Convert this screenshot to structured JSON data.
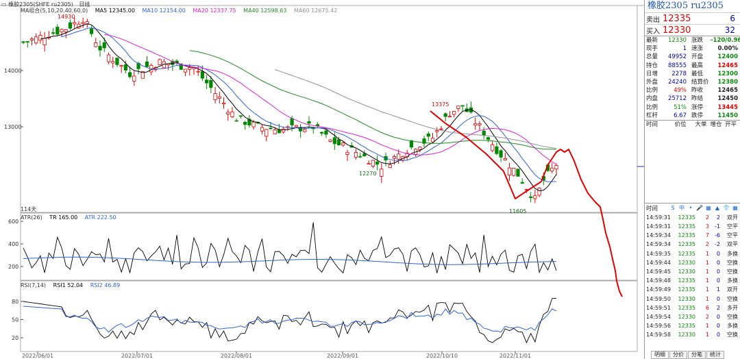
{
  "window": {
    "title": "橡胶2305(SHFE ru2305)",
    "period": "日线"
  },
  "main_legend": {
    "label": "MA组合(5,10,20,40,60,0)",
    "ma5": "MA5 12345.00",
    "ma10": "MA10 12154.00",
    "ma20": "MA20 12337.75",
    "ma40": "MA40 12598.63",
    "ma60": "MA60 12675.42"
  },
  "colors": {
    "ma5": "#000000",
    "ma10": "#2c62d6",
    "ma20": "#e020d0",
    "ma40": "#1f8a1f",
    "ma60": "#909090",
    "up": "#e00000",
    "down": "#008800",
    "drawn_line": "#e00000"
  },
  "price_axis": {
    "ticks": [
      "14000",
      "13000"
    ]
  },
  "annotations": {
    "high1": "14930",
    "high2": "13375",
    "low1": "12270",
    "low2": "11605",
    "days": "114天"
  },
  "atr_legend": {
    "label": "ATR(26)",
    "tr": "TR 165.00",
    "atr": "ATR 222.50",
    "ticks": [
      "600",
      "400",
      "200"
    ]
  },
  "rsi_legend": {
    "label": "RSI(7,14)",
    "rsi1": "RSI1 52.04",
    "rsi2": "RSI2 46.89",
    "ticks": [
      "80",
      "50",
      "20"
    ]
  },
  "dates": [
    "2022/06/01",
    "2022/07/01",
    "2022/08/01",
    "2022/09/01",
    "2022/10/10",
    "2022/11/01"
  ],
  "quote": {
    "title": "橡胶2305  ru2305",
    "sell_label": "卖出",
    "sell_price": "12335",
    "sell_qty": "6",
    "buy_label": "买入",
    "buy_price": "12330",
    "buy_qty": "32",
    "stats": [
      {
        "k": "最新",
        "v": "12330",
        "vc": "#0a8a0a",
        "k2": "涨跌",
        "v2": "-120/0.96%",
        "v2c": "#0a8a0a"
      },
      {
        "k": "现手",
        "v": "1",
        "vc": "#0000aa",
        "k2": "速涨",
        "v2": "0.00%",
        "v2c": "#222"
      },
      {
        "k": "总量",
        "v": "49952",
        "vc": "#0000aa",
        "k2": "开盘",
        "v2": "12400",
        "v2c": "#0a8a0a"
      },
      {
        "k": "持仓",
        "v": "88555",
        "vc": "#0000aa",
        "k2": "最高",
        "v2": "12465",
        "v2c": "#e00000"
      },
      {
        "k": "日增",
        "v": "2278",
        "vc": "#0000aa",
        "k2": "最低",
        "v2": "12300",
        "v2c": "#0a8a0a"
      },
      {
        "k": "外盘",
        "v": "24240",
        "vc": "#0000aa",
        "k2": "结算价",
        "v2": "12380",
        "v2c": "#0a8a0a"
      },
      {
        "k": "比例",
        "v": "49%",
        "vc": "#e00000",
        "k2": "昨收",
        "v2": "12465",
        "v2c": "#222"
      },
      {
        "k": "内盘",
        "v": "25712",
        "vc": "#0000aa",
        "k2": "昨结",
        "v2": "12450",
        "v2c": "#222"
      },
      {
        "k": "比例",
        "v": "51%",
        "vc": "#0a8a0a",
        "k2": "涨停",
        "v2": "13445",
        "v2c": "#e00000"
      },
      {
        "k": "杠杆",
        "v": "6.67",
        "vc": "#0000aa",
        "k2": "跌停",
        "v2": "11450",
        "v2c": "#0a8a0a"
      }
    ],
    "trade_header": [
      "时间",
      "价位",
      "大单",
      "增仓",
      "开平"
    ],
    "tick_header": "时间",
    "tick_icons": [
      "S",
      "中",
      "•",
      "🎤",
      "▦",
      "▲",
      "👕",
      "▦"
    ],
    "ticks": [
      {
        "t": "14:59:31",
        "p": "12335",
        "v": "2",
        "d": "2",
        "k": "双开"
      },
      {
        "t": "14:59:31",
        "p": "12335",
        "v": "3",
        "d": "-1",
        "k": "空平"
      },
      {
        "t": "14:59:34",
        "p": "12335",
        "v": "7",
        "d": "-6",
        "k": "空平"
      },
      {
        "t": "14:59:34",
        "p": "12335",
        "v": "2",
        "d": "-2",
        "k": "双平"
      },
      {
        "t": "14:59:35",
        "p": "12335",
        "v": "1",
        "d": "0",
        "k": "多换"
      },
      {
        "t": "14:59:44",
        "p": "12330",
        "v": "1",
        "d": "0",
        "k": "空换"
      },
      {
        "t": "14:59:45",
        "p": "12330",
        "v": "1",
        "d": "0",
        "k": "空换"
      },
      {
        "t": "14:59:48",
        "p": "12335",
        "v": "1",
        "d": "0",
        "k": "多换"
      },
      {
        "t": "14:59:49",
        "p": "12335",
        "v": "1",
        "d": "1",
        "k": "双开"
      },
      {
        "t": "14:59:50",
        "p": "12330",
        "v": "1",
        "d": "0",
        "k": "空换"
      },
      {
        "t": "14:59:51",
        "p": "12335",
        "v": "6",
        "d": "2",
        "k": "多开"
      },
      {
        "t": "14:59:54",
        "p": "12330",
        "v": "2",
        "d": "0",
        "k": "空换"
      },
      {
        "t": "14:59:56",
        "p": "12335",
        "v": "1",
        "d": "0",
        "k": "多换"
      },
      {
        "t": "14:59:58",
        "p": "12330",
        "v": "1",
        "d": "0",
        "k": "空换"
      }
    ],
    "tabs": [
      "明细",
      "分价",
      "分笔",
      "统计"
    ]
  }
}
